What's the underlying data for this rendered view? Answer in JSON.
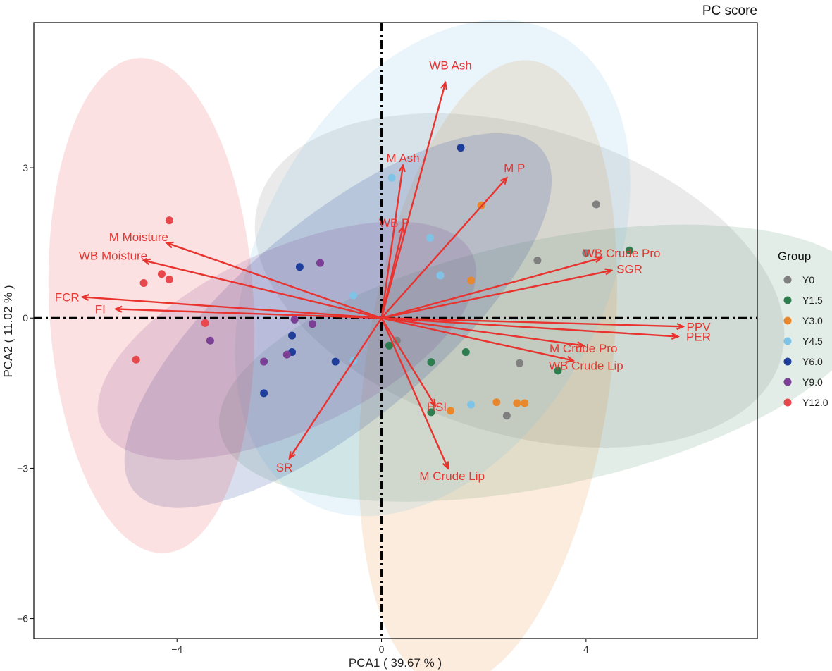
{
  "chart_data": {
    "type": "scatter",
    "title": "PC score",
    "xlabel": "PCA1 ( 39.67 % )",
    "ylabel": "PCA2 ( 11.02 % )",
    "xlim": [
      -6.8,
      7.35
    ],
    "ylim": [
      -6.4,
      5.9
    ],
    "xticks": [
      -4,
      0,
      4
    ],
    "yticks": [
      -6,
      -3,
      0,
      3
    ],
    "reference_lines": {
      "x": 0,
      "y": 0,
      "style": "dot-dash"
    },
    "legend": {
      "title": "Group",
      "position": "right"
    },
    "groups": [
      {
        "name": "Y0",
        "color": "#808080",
        "points": [
          [
            0.3,
            -0.45
          ],
          [
            2.7,
            -0.9
          ],
          [
            3.05,
            1.15
          ],
          [
            4.0,
            1.3
          ],
          [
            4.2,
            2.27
          ],
          [
            2.45,
            -1.95
          ]
        ],
        "ellipse": {
          "center": [
            2.7,
            0.75
          ],
          "rx": 3.0,
          "ry": 5.45,
          "angle": 73,
          "opacity": 0.17
        }
      },
      {
        "name": "Y1.5",
        "color": "#2e7d4f",
        "points": [
          [
            0.15,
            -0.55
          ],
          [
            0.97,
            -0.88
          ],
          [
            1.65,
            -0.68
          ],
          [
            4.85,
            1.35
          ],
          [
            3.45,
            -1.05
          ],
          [
            0.97,
            -1.88
          ]
        ],
        "ellipse": {
          "center": [
            3.2,
            -0.9
          ],
          "rx": 6.5,
          "ry": 2.45,
          "angle": 12,
          "opacity": 0.14
        }
      },
      {
        "name": "Y3.0",
        "color": "#e8872c",
        "points": [
          [
            1.95,
            2.25
          ],
          [
            1.75,
            0.75
          ],
          [
            2.25,
            -1.68
          ],
          [
            2.65,
            -1.7
          ],
          [
            2.8,
            -1.7
          ],
          [
            1.35,
            -1.85
          ]
        ],
        "ellipse": {
          "center": [
            2.08,
            -1.1
          ],
          "rx": 2.4,
          "ry": 6.3,
          "angle": -8,
          "opacity": 0.16
        }
      },
      {
        "name": "Y4.5",
        "color": "#7fc3e6",
        "points": [
          [
            0.2,
            2.8
          ],
          [
            0.95,
            1.6
          ],
          [
            1.15,
            0.85
          ],
          [
            -0.55,
            0.45
          ],
          [
            -0.55,
            -0.85
          ],
          [
            1.75,
            -1.73
          ]
        ],
        "ellipse": {
          "center": [
            1.0,
            1.0
          ],
          "rx": 3.4,
          "ry": 5.3,
          "angle": -28,
          "opacity": 0.17
        }
      },
      {
        "name": "Y6.0",
        "color": "#1f3e9c",
        "points": [
          [
            1.55,
            3.4
          ],
          [
            -1.6,
            1.02
          ],
          [
            -1.75,
            -0.35
          ],
          [
            -1.75,
            -0.68
          ],
          [
            -0.9,
            -0.87
          ],
          [
            -2.3,
            -1.5
          ]
        ],
        "ellipse": {
          "center": [
            -0.85,
            -0.05
          ],
          "rx": 5.2,
          "ry": 2.0,
          "angle": 40,
          "opacity": 0.17
        }
      },
      {
        "name": "Y9.0",
        "color": "#7b3f96",
        "points": [
          [
            -1.2,
            1.1
          ],
          [
            -1.35,
            -0.12
          ],
          [
            -1.7,
            -0.03
          ],
          [
            -1.85,
            -0.73
          ],
          [
            -2.3,
            -0.87
          ],
          [
            -3.35,
            -0.45
          ]
        ],
        "ellipse": {
          "center": [
            -1.85,
            -0.45
          ],
          "rx": 4.0,
          "ry": 1.8,
          "angle": 25,
          "opacity": 0.17
        }
      },
      {
        "name": "Y12.0",
        "color": "#e8474b",
        "points": [
          [
            -4.15,
            1.95
          ],
          [
            -4.3,
            0.88
          ],
          [
            -4.15,
            0.77
          ],
          [
            -4.65,
            0.7
          ],
          [
            -3.45,
            -0.1
          ],
          [
            -4.8,
            -0.83
          ]
        ],
        "ellipse": {
          "center": [
            -4.5,
            0.25
          ],
          "rx": 2.0,
          "ry": 4.95,
          "angle": 3,
          "opacity": 0.16
        }
      }
    ],
    "loadings": [
      {
        "name": "WB Ash",
        "end": [
          1.25,
          4.7
        ],
        "label": [
          1.35,
          5.05
        ]
      },
      {
        "name": "M Ash",
        "end": [
          0.42,
          3.05
        ],
        "label": [
          0.42,
          3.2
        ]
      },
      {
        "name": "M P",
        "end": [
          2.45,
          2.8
        ],
        "label": [
          2.6,
          3.0
        ]
      },
      {
        "name": "WB P",
        "end": [
          0.42,
          1.82
        ],
        "label": [
          0.25,
          1.9
        ]
      },
      {
        "name": "M Moisture",
        "end": [
          -4.2,
          1.5
        ],
        "label": [
          -4.75,
          1.62
        ]
      },
      {
        "name": "WB Moisture",
        "end": [
          -4.65,
          1.15
        ],
        "label": [
          -5.25,
          1.25
        ]
      },
      {
        "name": "FCR",
        "end": [
          -5.85,
          0.42
        ],
        "label": [
          -6.15,
          0.42
        ]
      },
      {
        "name": "FI",
        "end": [
          -5.2,
          0.18
        ],
        "label": [
          -5.5,
          0.18
        ]
      },
      {
        "name": "WB Crude Pro",
        "end": [
          4.3,
          1.2
        ],
        "label": [
          4.7,
          1.3
        ]
      },
      {
        "name": "SGR",
        "end": [
          4.5,
          0.95
        ],
        "label": [
          4.85,
          0.98
        ]
      },
      {
        "name": "PPV",
        "end": [
          5.9,
          -0.17
        ],
        "label": [
          6.2,
          -0.17
        ]
      },
      {
        "name": "PER",
        "end": [
          5.8,
          -0.37
        ],
        "label": [
          6.2,
          -0.37
        ]
      },
      {
        "name": "M Crude Pro",
        "end": [
          3.95,
          -0.55
        ],
        "label": [
          3.95,
          -0.6
        ]
      },
      {
        "name": "WB Crude Lip",
        "end": [
          3.75,
          -0.85
        ],
        "label": [
          4.0,
          -0.95
        ]
      },
      {
        "name": "HSI",
        "end": [
          1.05,
          -1.75
        ],
        "label": [
          1.08,
          -1.77
        ]
      },
      {
        "name": "M Crude Lip",
        "end": [
          1.3,
          -3.0
        ],
        "label": [
          1.38,
          -3.15
        ]
      },
      {
        "name": "SR",
        "end": [
          -1.8,
          -2.8
        ],
        "label": [
          -1.9,
          -2.98
        ]
      }
    ],
    "loading_color": "#e8332f"
  }
}
